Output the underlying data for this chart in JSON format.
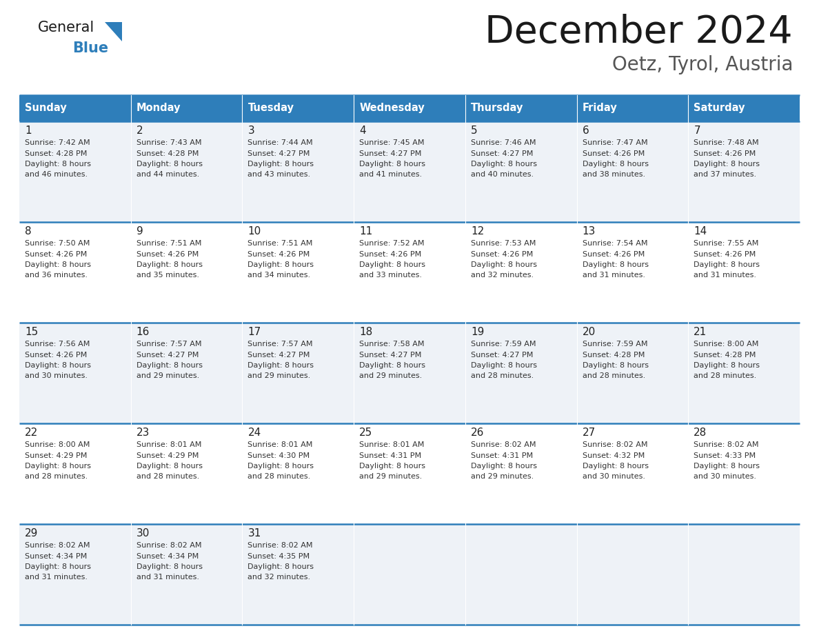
{
  "title": "December 2024",
  "subtitle": "Oetz, Tyrol, Austria",
  "header_bg": "#2E7EBA",
  "header_text_color": "#FFFFFF",
  "cell_bg_odd": "#EEF2F7",
  "cell_bg_even": "#FFFFFF",
  "border_color": "#2E7EBA",
  "day_headers": [
    "Sunday",
    "Monday",
    "Tuesday",
    "Wednesday",
    "Thursday",
    "Friday",
    "Saturday"
  ],
  "weeks": [
    [
      {
        "day": 1,
        "sunrise": "7:42 AM",
        "sunset": "4:28 PM",
        "daylight_hrs": 8,
        "daylight_min": 46
      },
      {
        "day": 2,
        "sunrise": "7:43 AM",
        "sunset": "4:28 PM",
        "daylight_hrs": 8,
        "daylight_min": 44
      },
      {
        "day": 3,
        "sunrise": "7:44 AM",
        "sunset": "4:27 PM",
        "daylight_hrs": 8,
        "daylight_min": 43
      },
      {
        "day": 4,
        "sunrise": "7:45 AM",
        "sunset": "4:27 PM",
        "daylight_hrs": 8,
        "daylight_min": 41
      },
      {
        "day": 5,
        "sunrise": "7:46 AM",
        "sunset": "4:27 PM",
        "daylight_hrs": 8,
        "daylight_min": 40
      },
      {
        "day": 6,
        "sunrise": "7:47 AM",
        "sunset": "4:26 PM",
        "daylight_hrs": 8,
        "daylight_min": 38
      },
      {
        "day": 7,
        "sunrise": "7:48 AM",
        "sunset": "4:26 PM",
        "daylight_hrs": 8,
        "daylight_min": 37
      }
    ],
    [
      {
        "day": 8,
        "sunrise": "7:50 AM",
        "sunset": "4:26 PM",
        "daylight_hrs": 8,
        "daylight_min": 36
      },
      {
        "day": 9,
        "sunrise": "7:51 AM",
        "sunset": "4:26 PM",
        "daylight_hrs": 8,
        "daylight_min": 35
      },
      {
        "day": 10,
        "sunrise": "7:51 AM",
        "sunset": "4:26 PM",
        "daylight_hrs": 8,
        "daylight_min": 34
      },
      {
        "day": 11,
        "sunrise": "7:52 AM",
        "sunset": "4:26 PM",
        "daylight_hrs": 8,
        "daylight_min": 33
      },
      {
        "day": 12,
        "sunrise": "7:53 AM",
        "sunset": "4:26 PM",
        "daylight_hrs": 8,
        "daylight_min": 32
      },
      {
        "day": 13,
        "sunrise": "7:54 AM",
        "sunset": "4:26 PM",
        "daylight_hrs": 8,
        "daylight_min": 31
      },
      {
        "day": 14,
        "sunrise": "7:55 AM",
        "sunset": "4:26 PM",
        "daylight_hrs": 8,
        "daylight_min": 31
      }
    ],
    [
      {
        "day": 15,
        "sunrise": "7:56 AM",
        "sunset": "4:26 PM",
        "daylight_hrs": 8,
        "daylight_min": 30
      },
      {
        "day": 16,
        "sunrise": "7:57 AM",
        "sunset": "4:27 PM",
        "daylight_hrs": 8,
        "daylight_min": 29
      },
      {
        "day": 17,
        "sunrise": "7:57 AM",
        "sunset": "4:27 PM",
        "daylight_hrs": 8,
        "daylight_min": 29
      },
      {
        "day": 18,
        "sunrise": "7:58 AM",
        "sunset": "4:27 PM",
        "daylight_hrs": 8,
        "daylight_min": 29
      },
      {
        "day": 19,
        "sunrise": "7:59 AM",
        "sunset": "4:27 PM",
        "daylight_hrs": 8,
        "daylight_min": 28
      },
      {
        "day": 20,
        "sunrise": "7:59 AM",
        "sunset": "4:28 PM",
        "daylight_hrs": 8,
        "daylight_min": 28
      },
      {
        "day": 21,
        "sunrise": "8:00 AM",
        "sunset": "4:28 PM",
        "daylight_hrs": 8,
        "daylight_min": 28
      }
    ],
    [
      {
        "day": 22,
        "sunrise": "8:00 AM",
        "sunset": "4:29 PM",
        "daylight_hrs": 8,
        "daylight_min": 28
      },
      {
        "day": 23,
        "sunrise": "8:01 AM",
        "sunset": "4:29 PM",
        "daylight_hrs": 8,
        "daylight_min": 28
      },
      {
        "day": 24,
        "sunrise": "8:01 AM",
        "sunset": "4:30 PM",
        "daylight_hrs": 8,
        "daylight_min": 28
      },
      {
        "day": 25,
        "sunrise": "8:01 AM",
        "sunset": "4:31 PM",
        "daylight_hrs": 8,
        "daylight_min": 29
      },
      {
        "day": 26,
        "sunrise": "8:02 AM",
        "sunset": "4:31 PM",
        "daylight_hrs": 8,
        "daylight_min": 29
      },
      {
        "day": 27,
        "sunrise": "8:02 AM",
        "sunset": "4:32 PM",
        "daylight_hrs": 8,
        "daylight_min": 30
      },
      {
        "day": 28,
        "sunrise": "8:02 AM",
        "sunset": "4:33 PM",
        "daylight_hrs": 8,
        "daylight_min": 30
      }
    ],
    [
      {
        "day": 29,
        "sunrise": "8:02 AM",
        "sunset": "4:34 PM",
        "daylight_hrs": 8,
        "daylight_min": 31
      },
      {
        "day": 30,
        "sunrise": "8:02 AM",
        "sunset": "4:34 PM",
        "daylight_hrs": 8,
        "daylight_min": 31
      },
      {
        "day": 31,
        "sunrise": "8:02 AM",
        "sunset": "4:35 PM",
        "daylight_hrs": 8,
        "daylight_min": 32
      },
      null,
      null,
      null,
      null
    ]
  ],
  "title_color": "#1a1a1a",
  "subtitle_color": "#555555",
  "day_number_color": "#222222",
  "cell_text_color": "#333333",
  "logo_general_color": "#1a1a1a",
  "logo_blue_color": "#2E7EBA",
  "logo_triangle_color": "#2E7EBA"
}
